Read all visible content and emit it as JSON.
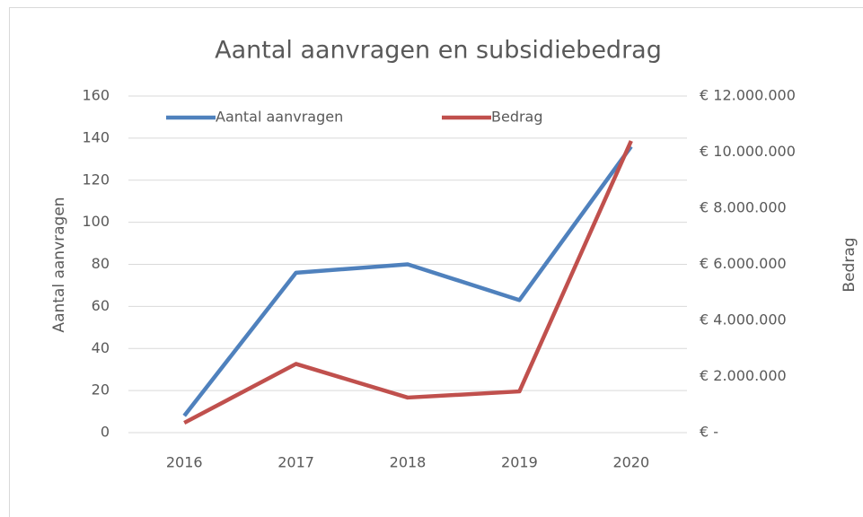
{
  "chart_data": {
    "type": "line",
    "title": "Aantal aanvragen en subsidiebedrag",
    "y_label": "Aantal aanvragen",
    "y2_label": "Bedrag",
    "categories": [
      "2016",
      "2017",
      "2018",
      "2019",
      "2020"
    ],
    "series": [
      {
        "name": "Aantal aanvragen",
        "color": "#4f81bd",
        "values": [
          8,
          76,
          80,
          63,
          136
        ]
      },
      {
        "name": "Bedrag",
        "color": "#c0504d",
        "axis": "y2",
        "values": [
          350000,
          2450000,
          1250000,
          1470000,
          10400000
        ]
      }
    ],
    "ylim": [
      0,
      160
    ],
    "yticks": [
      0,
      20,
      40,
      60,
      80,
      100,
      120,
      140,
      160
    ],
    "y2lim": [
      0,
      12000000
    ],
    "y2ticks": [
      {
        "value": 0,
        "label": "€ -"
      },
      {
        "value": 2000000,
        "label": "€ 2.000.000"
      },
      {
        "value": 4000000,
        "label": "€ 4.000.000"
      },
      {
        "value": 6000000,
        "label": "€ 6.000.000"
      },
      {
        "value": 8000000,
        "label": "€ 8.000.000"
      },
      {
        "value": 10000000,
        "label": "€ 10.000.000"
      },
      {
        "value": 12000000,
        "label": "€ 12.000.000"
      }
    ],
    "grid": true,
    "legend": "top"
  }
}
